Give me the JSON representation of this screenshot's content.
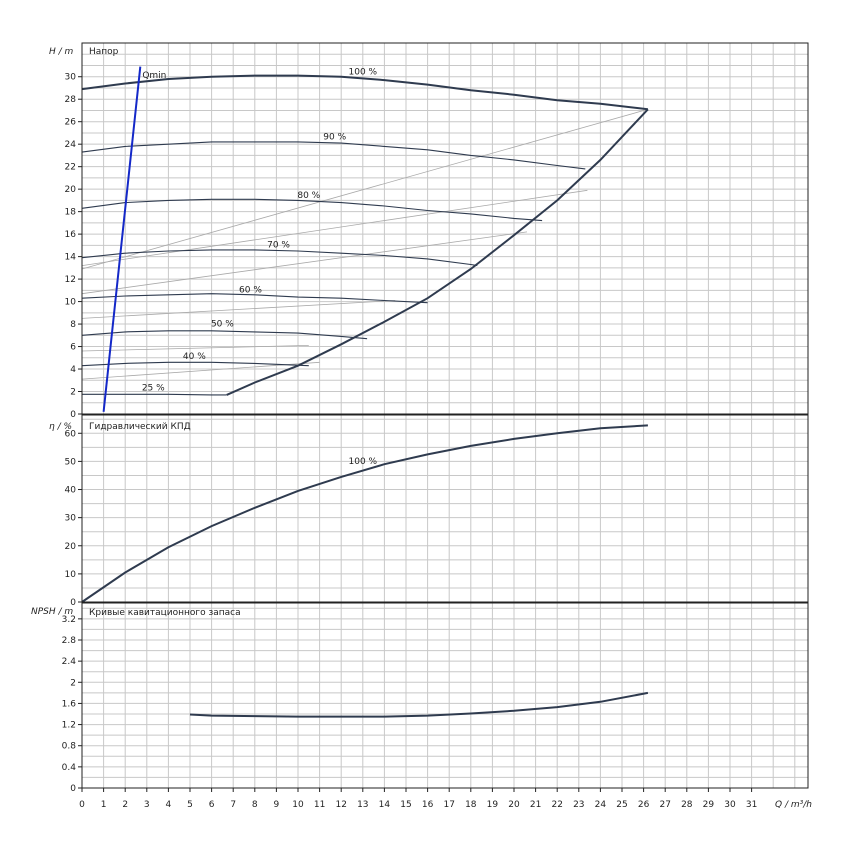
{
  "chart_data": [
    {
      "type": "line",
      "title": "Напор",
      "ylabel": "H / m",
      "ylim": [
        0,
        33
      ],
      "yticks": [
        0,
        2,
        4,
        6,
        8,
        10,
        12,
        14,
        16,
        18,
        20,
        22,
        24,
        26,
        28,
        30
      ],
      "xlim": [
        0,
        33.5
      ],
      "qmin": {
        "label": "Qmin",
        "x": [
          1.0,
          2.7
        ],
        "y": [
          0.2,
          30.9
        ]
      },
      "speed_curves": [
        {
          "name": "100 %",
          "label_at": [
            13,
            30.2
          ],
          "x": [
            0,
            2,
            4,
            6,
            8,
            10,
            12,
            14,
            16,
            18,
            20,
            22,
            24,
            26.2
          ],
          "y": [
            28.9,
            29.4,
            29.8,
            30.0,
            30.1,
            30.1,
            30.0,
            29.7,
            29.3,
            28.8,
            28.4,
            27.9,
            27.6,
            27.1
          ]
        },
        {
          "name": "90 %",
          "label_at": [
            11.7,
            24.4
          ],
          "x": [
            0,
            2,
            4,
            6,
            8,
            10,
            12,
            14,
            16,
            18,
            20,
            22,
            23.3
          ],
          "y": [
            23.3,
            23.8,
            24.0,
            24.2,
            24.2,
            24.2,
            24.1,
            23.8,
            23.5,
            23.0,
            22.6,
            22.1,
            21.8
          ]
        },
        {
          "name": "80 %",
          "label_at": [
            10.5,
            19.2
          ],
          "x": [
            0,
            2,
            4,
            6,
            8,
            10,
            12,
            14,
            16,
            18,
            20,
            21.3
          ],
          "y": [
            18.3,
            18.8,
            19.0,
            19.1,
            19.1,
            19.0,
            18.8,
            18.5,
            18.1,
            17.8,
            17.4,
            17.2
          ]
        },
        {
          "name": "70 %",
          "label_at": [
            9.1,
            14.8
          ],
          "x": [
            0,
            2,
            4,
            6,
            8,
            10,
            12,
            14,
            16,
            18,
            18.3
          ],
          "y": [
            13.9,
            14.3,
            14.5,
            14.6,
            14.6,
            14.5,
            14.3,
            14.1,
            13.8,
            13.3,
            13.2
          ]
        },
        {
          "name": "60 %",
          "label_at": [
            7.8,
            10.8
          ],
          "x": [
            0,
            2,
            4,
            6,
            8,
            10,
            12,
            14,
            16
          ],
          "y": [
            10.3,
            10.5,
            10.6,
            10.7,
            10.6,
            10.4,
            10.3,
            10.1,
            9.9
          ]
        },
        {
          "name": "50 %",
          "label_at": [
            6.5,
            7.8
          ],
          "x": [
            0,
            2,
            4,
            6,
            8,
            10,
            12,
            13.2
          ],
          "y": [
            7.0,
            7.3,
            7.4,
            7.4,
            7.3,
            7.2,
            6.9,
            6.7
          ]
        },
        {
          "name": "40 %",
          "label_at": [
            5.2,
            4.9
          ],
          "x": [
            0,
            2,
            4,
            6,
            8,
            10.5
          ],
          "y": [
            4.3,
            4.5,
            4.6,
            4.6,
            4.5,
            4.3
          ]
        },
        {
          "name": "25 %",
          "label_at": [
            3.3,
            2.1
          ],
          "x": [
            0,
            2,
            4,
            6,
            6.7
          ],
          "y": [
            1.75,
            1.75,
            1.75,
            1.7,
            1.7
          ]
        }
      ],
      "limit_curve": {
        "x": [
          6.7,
          8,
          10,
          12,
          14,
          16,
          18,
          20,
          22,
          24,
          26.2
        ],
        "y": [
          1.7,
          2.8,
          4.3,
          6.2,
          8.2,
          10.3,
          12.9,
          15.9,
          19.0,
          22.6,
          27.1
        ]
      },
      "efficiency_isolines": [
        {
          "x": [
            0,
            26.2
          ],
          "y": [
            12.9,
            27.1
          ]
        },
        {
          "x": [
            0,
            20.6
          ],
          "y": [
            10.7,
            16.2
          ]
        },
        {
          "x": [
            0,
            23.4
          ],
          "y": [
            13.2,
            19.9
          ]
        },
        {
          "x": [
            0,
            14.5
          ],
          "y": [
            8.5,
            10.1
          ]
        },
        {
          "x": [
            0,
            10.5
          ],
          "y": [
            5.6,
            6.1
          ]
        },
        {
          "x": [
            0,
            11
          ],
          "y": [
            3.1,
            4.6
          ]
        }
      ]
    },
    {
      "type": "line",
      "title": "Гидравлический КПД",
      "ylabel": "η / %",
      "ylim": [
        0,
        66.5
      ],
      "yticks": [
        0,
        10,
        20,
        30,
        40,
        50,
        60
      ],
      "series": [
        {
          "name": "100 %",
          "label_at": [
            13,
            49
          ],
          "x": [
            0,
            2,
            4,
            6,
            8,
            10,
            12,
            14,
            16,
            18,
            20,
            22,
            24,
            26.2
          ],
          "y": [
            0,
            10.5,
            19.5,
            27.0,
            33.5,
            39.5,
            44.5,
            49.0,
            52.5,
            55.5,
            58.0,
            60.0,
            61.8,
            62.8
          ]
        }
      ]
    },
    {
      "type": "line",
      "title": "Кривые кавитационного запаса",
      "ylabel": "NPSH / m",
      "xlabel": "Q / m³/h",
      "ylim": [
        0,
        3.5
      ],
      "yticks": [
        "0",
        "0.4",
        "0.8",
        "1.2",
        "1.6",
        "2",
        "2.4",
        "2.8",
        "3.2"
      ],
      "xticks": [
        "0",
        "1",
        "2",
        "3",
        "4",
        "5",
        "6",
        "7",
        "8",
        "9",
        "10",
        "11",
        "12",
        "13",
        "14",
        "15",
        "16",
        "17",
        "18",
        "19",
        "20",
        "21",
        "22",
        "23",
        "24",
        "25",
        "26",
        "27",
        "28",
        "29",
        "30",
        "31"
      ],
      "series": [
        {
          "x": [
            5,
            6,
            8,
            10,
            12,
            14,
            16,
            18,
            20,
            22,
            24,
            26.2
          ],
          "y": [
            1.39,
            1.37,
            1.36,
            1.35,
            1.35,
            1.35,
            1.37,
            1.41,
            1.46,
            1.53,
            1.63,
            1.8
          ]
        }
      ]
    }
  ]
}
